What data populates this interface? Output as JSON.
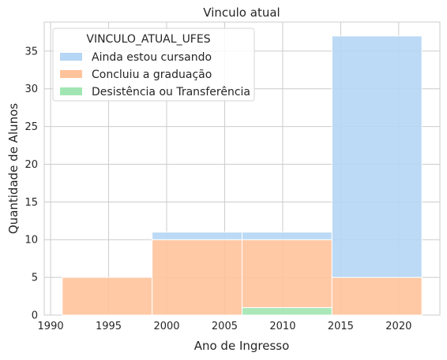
{
  "chart_data": {
    "type": "bar",
    "stacked": true,
    "title": "Vinculo atual",
    "xlabel": "Ano de Ingresso",
    "ylabel": "Quantidade de Alunos",
    "xlim": [
      1989.45,
      2023.55
    ],
    "ylim": [
      0,
      38.85
    ],
    "xticks": [
      1990,
      1995,
      2000,
      2005,
      2010,
      2015,
      2020
    ],
    "yticks": [
      0,
      5,
      10,
      15,
      20,
      25,
      30,
      35
    ],
    "grid": true,
    "bins": [
      {
        "x0": 1991.0,
        "x1": 1998.75
      },
      {
        "x0": 1998.75,
        "x1": 2006.5
      },
      {
        "x0": 2006.5,
        "x1": 2014.25
      },
      {
        "x0": 2014.25,
        "x1": 2022.0
      }
    ],
    "series": [
      {
        "name": "Desistência ou Transferência",
        "values": [
          0,
          0,
          1,
          0
        ],
        "color": "#a1e6b2"
      },
      {
        "name": "Concluiu a graduação",
        "values": [
          5,
          10,
          9,
          5
        ],
        "color": "#ffc39c"
      },
      {
        "name": "Ainda estou cursando",
        "values": [
          0,
          1,
          1,
          32
        ],
        "color": "#b5d6f4"
      }
    ],
    "legend": {
      "title": "VINCULO_ATUAL_UFES",
      "placement": "top-left",
      "entries": [
        "Ainda estou cursando",
        "Concluiu a graduação",
        "Desistência ou Transferência"
      ]
    }
  }
}
